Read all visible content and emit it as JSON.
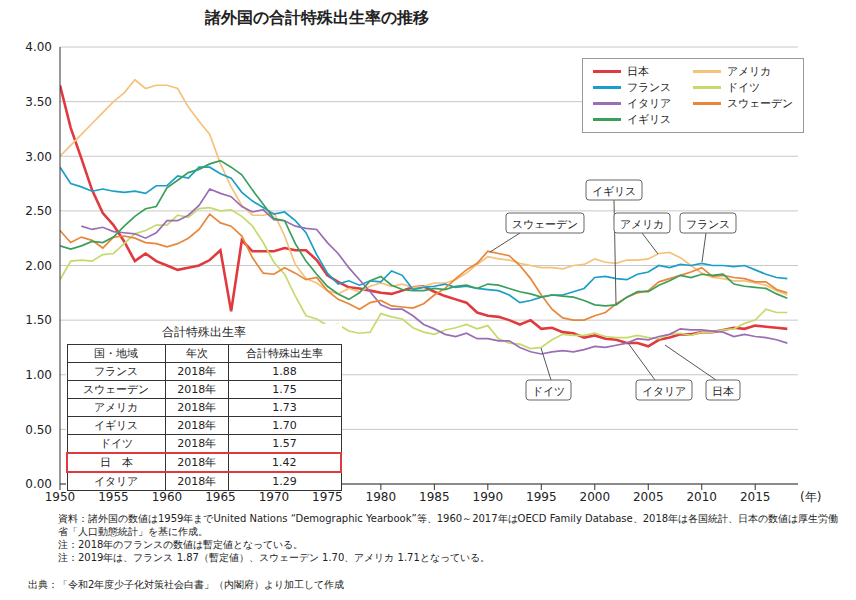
{
  "title": "諸外国の合計特殊出生率の推移",
  "chart_data": {
    "type": "line",
    "xlabel": "(年)",
    "x": [
      1950,
      1951,
      1952,
      1953,
      1954,
      1955,
      1956,
      1957,
      1958,
      1959,
      1960,
      1961,
      1962,
      1963,
      1964,
      1965,
      1966,
      1967,
      1968,
      1969,
      1970,
      1971,
      1972,
      1973,
      1974,
      1975,
      1976,
      1977,
      1978,
      1979,
      1980,
      1981,
      1982,
      1983,
      1984,
      1985,
      1986,
      1987,
      1988,
      1989,
      1990,
      1991,
      1992,
      1993,
      1994,
      1995,
      1996,
      1997,
      1998,
      1999,
      2000,
      2001,
      2002,
      2003,
      2004,
      2005,
      2006,
      2007,
      2008,
      2009,
      2010,
      2011,
      2012,
      2013,
      2014,
      2015,
      2016,
      2017,
      2018
    ],
    "series": [
      {
        "name": "日本",
        "color": "#e0393e",
        "values": [
          3.65,
          3.26,
          2.98,
          2.69,
          2.48,
          2.37,
          2.22,
          2.04,
          2.11,
          2.04,
          2.0,
          1.96,
          1.98,
          2.0,
          2.05,
          2.14,
          1.58,
          2.23,
          2.13,
          2.13,
          2.13,
          2.16,
          2.14,
          2.14,
          2.05,
          1.91,
          1.85,
          1.8,
          1.79,
          1.77,
          1.75,
          1.74,
          1.77,
          1.8,
          1.81,
          1.76,
          1.72,
          1.69,
          1.66,
          1.57,
          1.54,
          1.53,
          1.5,
          1.46,
          1.5,
          1.42,
          1.43,
          1.39,
          1.38,
          1.34,
          1.36,
          1.33,
          1.32,
          1.29,
          1.29,
          1.26,
          1.32,
          1.34,
          1.37,
          1.37,
          1.39,
          1.39,
          1.41,
          1.43,
          1.42,
          1.45,
          1.44,
          1.43,
          1.42
        ]
      },
      {
        "name": "アメリカ",
        "color": "#f5c27c",
        "values": [
          3.0,
          3.1,
          3.2,
          3.3,
          3.4,
          3.5,
          3.58,
          3.7,
          3.62,
          3.65,
          3.65,
          3.62,
          3.45,
          3.32,
          3.2,
          2.93,
          2.72,
          2.55,
          2.46,
          2.46,
          2.48,
          2.27,
          2.01,
          1.88,
          1.84,
          1.77,
          1.74,
          1.79,
          1.76,
          1.81,
          1.84,
          1.81,
          1.83,
          1.8,
          1.81,
          1.84,
          1.84,
          1.87,
          1.93,
          2.01,
          2.08,
          2.06,
          2.05,
          2.02,
          2.0,
          1.98,
          1.98,
          1.97,
          2.0,
          2.01,
          2.06,
          2.03,
          2.02,
          2.05,
          2.05,
          2.06,
          2.11,
          2.12,
          2.07,
          2.0,
          1.93,
          1.89,
          1.88,
          1.86,
          1.86,
          1.84,
          1.82,
          1.77,
          1.73
        ]
      },
      {
        "name": "フランス",
        "color": "#1a9fc9",
        "values": [
          2.9,
          2.75,
          2.72,
          2.68,
          2.7,
          2.68,
          2.67,
          2.68,
          2.66,
          2.73,
          2.73,
          2.82,
          2.8,
          2.9,
          2.9,
          2.84,
          2.8,
          2.67,
          2.59,
          2.53,
          2.47,
          2.49,
          2.41,
          2.3,
          2.1,
          1.93,
          1.83,
          1.86,
          1.82,
          1.86,
          1.85,
          1.95,
          1.91,
          1.78,
          1.8,
          1.81,
          1.83,
          1.8,
          1.81,
          1.79,
          1.78,
          1.77,
          1.73,
          1.66,
          1.68,
          1.71,
          1.73,
          1.73,
          1.76,
          1.79,
          1.89,
          1.9,
          1.88,
          1.87,
          1.92,
          1.94,
          2.0,
          1.98,
          2.01,
          2.0,
          2.02,
          2.0,
          2.0,
          1.99,
          2.0,
          1.96,
          1.92,
          1.89,
          1.88
        ]
      },
      {
        "name": "ドイツ",
        "color": "#c6da6b",
        "values": [
          1.87,
          2.04,
          2.05,
          2.04,
          2.1,
          2.11,
          2.2,
          2.29,
          2.32,
          2.37,
          2.37,
          2.46,
          2.44,
          2.52,
          2.53,
          2.5,
          2.51,
          2.45,
          2.36,
          2.21,
          2.03,
          1.92,
          1.72,
          1.54,
          1.51,
          1.45,
          1.46,
          1.4,
          1.38,
          1.39,
          1.56,
          1.53,
          1.51,
          1.43,
          1.39,
          1.37,
          1.41,
          1.43,
          1.46,
          1.42,
          1.45,
          1.33,
          1.29,
          1.28,
          1.24,
          1.25,
          1.32,
          1.37,
          1.36,
          1.36,
          1.38,
          1.35,
          1.34,
          1.34,
          1.36,
          1.34,
          1.33,
          1.37,
          1.38,
          1.36,
          1.39,
          1.39,
          1.41,
          1.42,
          1.47,
          1.5,
          1.6,
          1.57,
          1.57
        ]
      },
      {
        "name": "イタリア",
        "color": "#9a6db5",
        "values": [
          null,
          null,
          2.36,
          2.33,
          2.35,
          2.31,
          2.3,
          2.29,
          2.25,
          2.3,
          2.41,
          2.41,
          2.46,
          2.55,
          2.7,
          2.66,
          2.63,
          2.54,
          2.49,
          2.51,
          2.42,
          2.41,
          2.36,
          2.34,
          2.33,
          2.21,
          2.11,
          1.98,
          1.87,
          1.76,
          1.64,
          1.6,
          1.6,
          1.54,
          1.46,
          1.42,
          1.37,
          1.35,
          1.38,
          1.33,
          1.33,
          1.31,
          1.31,
          1.25,
          1.21,
          1.19,
          1.21,
          1.22,
          1.21,
          1.23,
          1.26,
          1.25,
          1.27,
          1.29,
          1.33,
          1.32,
          1.35,
          1.37,
          1.42,
          1.41,
          1.41,
          1.4,
          1.39,
          1.35,
          1.37,
          1.35,
          1.34,
          1.32,
          1.29
        ]
      },
      {
        "name": "スウェーデン",
        "color": "#e8863a",
        "values": [
          2.32,
          2.21,
          2.26,
          2.23,
          2.16,
          2.26,
          2.27,
          2.25,
          2.21,
          2.2,
          2.17,
          2.2,
          2.25,
          2.33,
          2.47,
          2.39,
          2.36,
          2.27,
          2.07,
          1.93,
          1.92,
          1.98,
          1.93,
          1.87,
          1.89,
          1.77,
          1.69,
          1.65,
          1.6,
          1.66,
          1.68,
          1.63,
          1.62,
          1.61,
          1.65,
          1.73,
          1.79,
          1.88,
          1.96,
          2.02,
          2.13,
          2.11,
          2.09,
          2.0,
          1.88,
          1.73,
          1.6,
          1.52,
          1.5,
          1.5,
          1.54,
          1.57,
          1.65,
          1.71,
          1.75,
          1.77,
          1.85,
          1.88,
          1.91,
          1.94,
          1.98,
          1.9,
          1.91,
          1.89,
          1.88,
          1.85,
          1.85,
          1.78,
          1.75
        ]
      },
      {
        "name": "イギリス",
        "color": "#3a9f5b",
        "values": [
          2.18,
          2.15,
          2.18,
          2.22,
          2.21,
          2.26,
          2.36,
          2.45,
          2.52,
          2.54,
          2.71,
          2.78,
          2.85,
          2.88,
          2.93,
          2.96,
          2.9,
          2.83,
          2.69,
          2.56,
          2.43,
          2.41,
          2.2,
          2.04,
          1.92,
          1.81,
          1.74,
          1.69,
          1.75,
          1.86,
          1.9,
          1.82,
          1.78,
          1.77,
          1.77,
          1.79,
          1.78,
          1.81,
          1.82,
          1.79,
          1.83,
          1.82,
          1.79,
          1.76,
          1.74,
          1.71,
          1.73,
          1.72,
          1.71,
          1.68,
          1.64,
          1.63,
          1.64,
          1.71,
          1.76,
          1.76,
          1.82,
          1.86,
          1.91,
          1.89,
          1.92,
          1.91,
          1.92,
          1.83,
          1.81,
          1.8,
          1.79,
          1.74,
          1.7
        ]
      }
    ],
    "xlim": [
      1950,
      2019
    ],
    "xticks": [
      1950,
      1955,
      1960,
      1965,
      1970,
      1975,
      1980,
      1985,
      1990,
      1995,
      2000,
      2005,
      2010,
      2015
    ],
    "ylim": [
      0,
      4
    ],
    "yticks": [
      {
        "value": 0,
        "label": "0.00"
      },
      {
        "value": 0.5,
        "label": "0.50"
      },
      {
        "value": 1,
        "label": "1.00"
      },
      {
        "value": 1.5,
        "label": "1.50"
      },
      {
        "value": 2,
        "label": "2.00"
      },
      {
        "value": 2.5,
        "label": "2.50"
      },
      {
        "value": 3,
        "label": "3.00"
      },
      {
        "value": 3.5,
        "label": "3.50"
      },
      {
        "value": 4,
        "label": "4.00"
      }
    ],
    "grid": true,
    "legend": "upper right",
    "annotations": [
      "イギリス",
      "スウェーデン",
      "アメリカ",
      "フランス",
      "ドイツ",
      "イタリア",
      "日本"
    ]
  },
  "table": {
    "title": "合計特殊出生率",
    "columns": [
      "国・地域",
      "年次",
      "合計特殊出生率"
    ],
    "rows": [
      [
        "フランス",
        "2018年",
        "1.88"
      ],
      [
        "スウェーデン",
        "2018年",
        "1.75"
      ],
      [
        "アメリカ",
        "2018年",
        "1.73"
      ],
      [
        "イギリス",
        "2018年",
        "1.70"
      ],
      [
        "ドイツ",
        "2018年",
        "1.57"
      ],
      [
        "日　本",
        "2018年",
        "1.42"
      ],
      [
        "イタリア",
        "2018年",
        "1.29"
      ]
    ],
    "highlight": "日　本"
  },
  "notes": [
    "資料：諸外国の数値は1959年までUnited Nations “Demographic Yearbook”等、1960～2017年はOECD Family Database、2018年は各国統計、日本の数値は厚生労働省「人口動態統計」を基に作成。",
    "注：2018年のフランスの数値は暫定値となっている。",
    "注：2019年は、フランス 1.87（暫定値）、スウェーデン 1.70、アメリカ 1.71となっている。"
  ],
  "source": "出典：「令和2年度少子化対策社会白書」（内閣府）より加工して作成"
}
